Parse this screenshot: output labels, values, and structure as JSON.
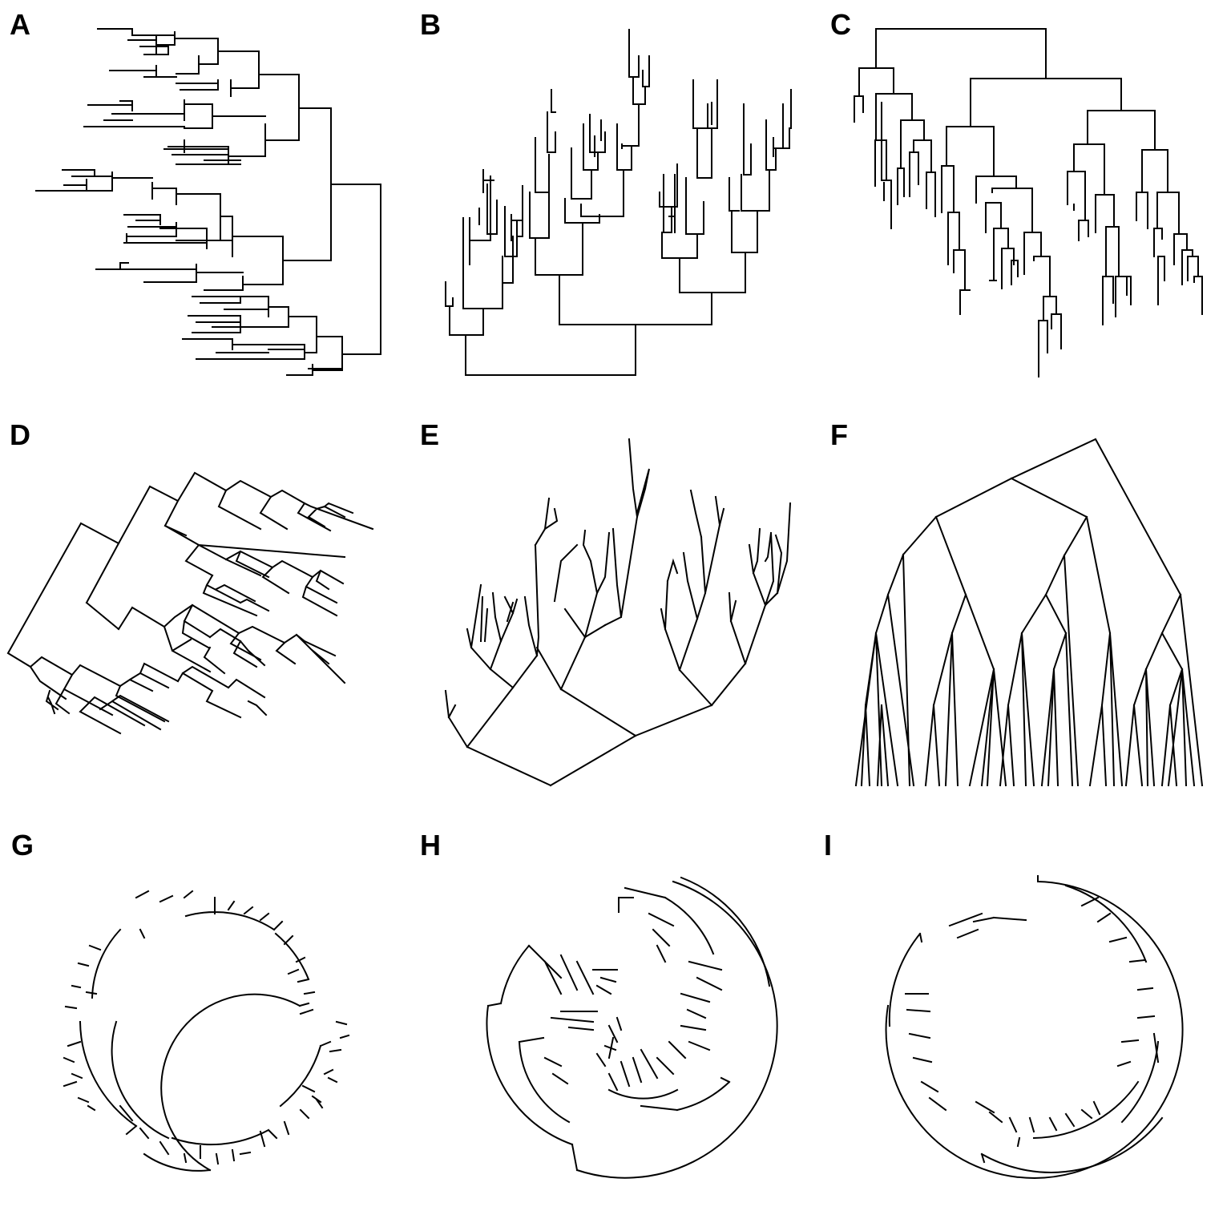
{
  "panels": [
    {
      "id": "A",
      "label": "A",
      "layout": "rectangular",
      "direction": "right-to-left"
    },
    {
      "id": "B",
      "label": "B",
      "layout": "rectangular",
      "direction": "bottom-up"
    },
    {
      "id": "C",
      "label": "C",
      "layout": "rectangular",
      "direction": "top-down"
    },
    {
      "id": "D",
      "label": "D",
      "layout": "rectangular",
      "direction": "rotated-diagonal"
    },
    {
      "id": "E",
      "label": "E",
      "layout": "slanted",
      "direction": "bottom-up"
    },
    {
      "id": "F",
      "label": "F",
      "layout": "slanted-cladogram",
      "direction": "top-down"
    },
    {
      "id": "G",
      "label": "G",
      "layout": "circular",
      "direction": "outward"
    },
    {
      "id": "H",
      "label": "H",
      "layout": "circular",
      "direction": "inward"
    },
    {
      "id": "I",
      "label": "I",
      "layout": "circular",
      "direction": "inward"
    }
  ],
  "colors": {
    "line": "#000000",
    "background": "#ffffff"
  }
}
